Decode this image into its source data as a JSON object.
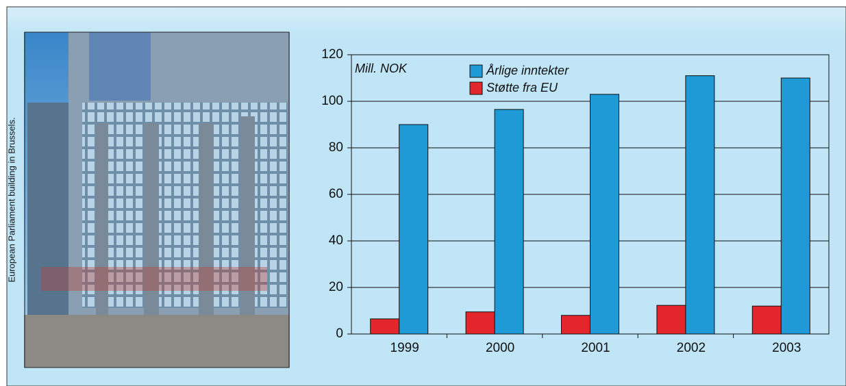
{
  "caption": "European Parliament building in Brussels.",
  "chart_data": {
    "type": "bar",
    "unit_label": "Mill. NOK",
    "categories": [
      "1999",
      "2000",
      "2001",
      "2002",
      "2003"
    ],
    "series": [
      {
        "name": "Støtte fra EU",
        "color": "#e3262b",
        "values": [
          6.5,
          9.5,
          8,
          12.3,
          12
        ]
      },
      {
        "name": "Årlige inntekter",
        "color": "#1f9ad6",
        "values": [
          90,
          96.5,
          103,
          111,
          110
        ]
      }
    ],
    "legend_order": [
      1,
      0
    ],
    "ylim": [
      0,
      120
    ],
    "yticks": [
      0,
      20,
      40,
      60,
      80,
      100,
      120
    ],
    "grid": true
  }
}
